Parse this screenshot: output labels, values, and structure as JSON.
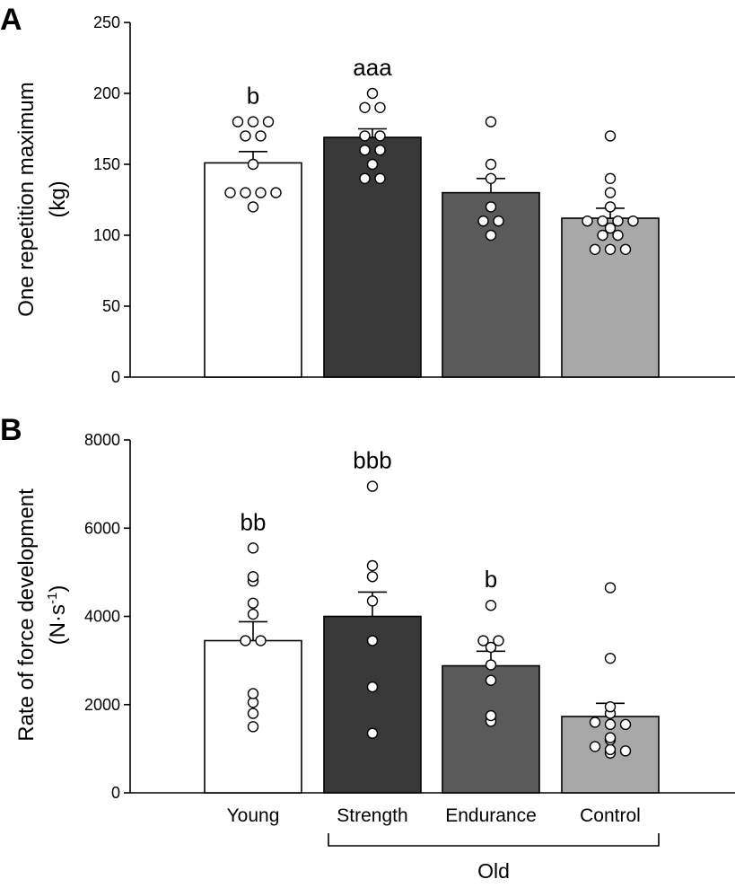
{
  "figure": {
    "bracket_label": "Old",
    "group_color_key": {
      "Young": "#ffffff",
      "Strength": "#383838",
      "Endurance": "#5a5a5a",
      "Control": "#a8a8a8"
    }
  },
  "chart_data": [
    {
      "type": "bar",
      "panel": "A",
      "title": "",
      "ylabel": "One repetition maximum",
      "ylabel_unit": "(kg)",
      "ylim": [
        0,
        250
      ],
      "yticks": [
        0,
        50,
        100,
        150,
        200,
        250
      ],
      "ytick_labels": [
        "0",
        "50",
        "100",
        "150",
        "200",
        "250"
      ],
      "categories": [
        "Young",
        "Strength",
        "Endurance",
        "Control"
      ],
      "colors": [
        "#ffffff",
        "#383838",
        "#5a5a5a",
        "#a8a8a8"
      ],
      "values": [
        151,
        169,
        130,
        112
      ],
      "sem": [
        8,
        6,
        10,
        7
      ],
      "significance": [
        "b",
        "aaa",
        "",
        ""
      ],
      "points": [
        [
          180,
          180,
          180,
          170,
          170,
          150,
          130,
          130,
          130,
          130,
          120
        ],
        [
          200,
          190,
          190,
          170,
          170,
          160,
          160,
          150,
          140,
          140
        ],
        [
          180,
          150,
          140,
          120,
          110,
          110,
          100
        ],
        [
          170,
          140,
          130,
          120,
          110,
          110,
          110,
          110,
          105,
          100,
          100,
          90,
          90,
          90
        ]
      ]
    },
    {
      "type": "bar",
      "panel": "B",
      "title": "",
      "ylabel": "Rate of force development",
      "ylabel_unit": "(N·s",
      "ylabel_unit_sup": "-1",
      "ylabel_unit_close": ")",
      "ylim": [
        0,
        8000
      ],
      "yticks": [
        0,
        2000,
        4000,
        6000,
        8000
      ],
      "ytick_labels": [
        "0",
        "2000",
        "4000",
        "6000",
        "8000"
      ],
      "categories": [
        "Young",
        "Strength",
        "Endurance",
        "Control"
      ],
      "colors": [
        "#ffffff",
        "#383838",
        "#5a5a5a",
        "#a8a8a8"
      ],
      "values": [
        3450,
        4000,
        2880,
        1730
      ],
      "sem": [
        430,
        550,
        330,
        300
      ],
      "significance": [
        "bb",
        "bbb",
        "b",
        ""
      ],
      "points": [
        [
          5550,
          4900,
          4800,
          4300,
          4050,
          3450,
          3450,
          2250,
          2050,
          1800,
          1500
        ],
        [
          6950,
          5150,
          4900,
          4350,
          3450,
          2400,
          1350
        ],
        [
          4250,
          3450,
          3450,
          3300,
          2900,
          2550,
          1750,
          1620
        ],
        [
          4650,
          3050,
          1950,
          1800,
          1600,
          1550,
          1550,
          1250,
          1200,
          1050,
          980,
          950,
          900
        ]
      ]
    }
  ]
}
